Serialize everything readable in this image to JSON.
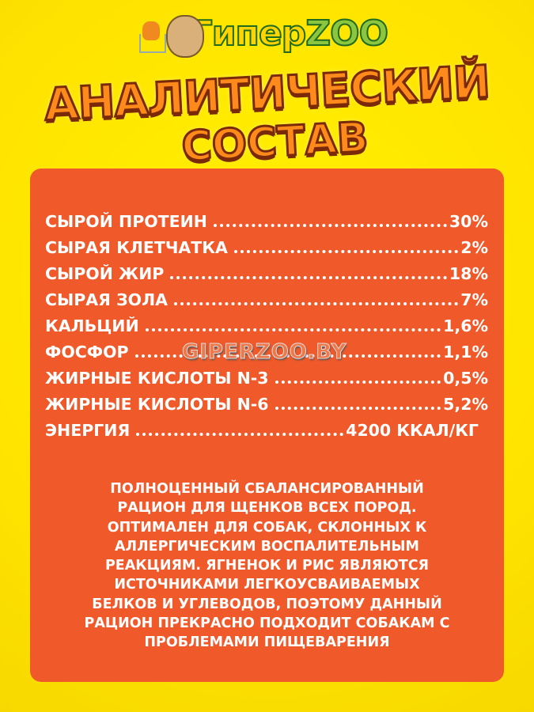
{
  "logo": {
    "text_part1": "Гипер",
    "text_part2": "ZOO"
  },
  "title": {
    "line1": "АНАЛИТИЧЕСКИЙ",
    "line2": "СОСТАВ"
  },
  "composition": [
    {
      "name": "СЫРОЙ ПРОТЕИН",
      "value": "30%"
    },
    {
      "name": "СЫРАЯ КЛЕТЧАТКА",
      "value": "2%"
    },
    {
      "name": "СЫРОЙ ЖИР",
      "value": "18%"
    },
    {
      "name": "СЫРАЯ ЗОЛА",
      "value": "7%"
    },
    {
      "name": "КАЛЬЦИЙ",
      "value": "1,6%"
    },
    {
      "name": "ФОСФОР",
      "value": "1,1%"
    },
    {
      "name": "ЖИРНЫЕ КИСЛОТЫ N-3",
      "value": "0,5%"
    },
    {
      "name": "ЖИРНЫЕ КИСЛОТЫ N-6",
      "value": "5,2%"
    },
    {
      "name": "ЭНЕРГИЯ",
      "value": "4200 ККАЛ/КГ"
    }
  ],
  "watermark": "GIPERZOO.BY",
  "description": [
    "ПОЛНОЦЕННЫЙ СБАЛАНСИРОВАННЫЙ",
    "РАЦИОН ДЛЯ ЩЕНКОВ ВСЕХ ПОРОД.",
    "ОПТИМАЛЕН ДЛЯ СОБАК, СКЛОННЫХ К",
    "АЛЛЕРГИЧЕСКИМ ВОСПАЛИТЕЛЬНЫМ",
    "РЕАКЦИЯМ. ЯГНЕНОК И РИС ЯВЛЯЮТСЯ",
    "ИСТОЧНИКАМИ ЛЕГКОУСВАИВАЕМЫХ",
    "БЕЛКОВ И УГЛЕВОДОВ, ПОЭТОМУ ДАННЫЙ",
    "РАЦИОН ПРЕКРАСНО ПОДХОДИТ СОБАКАМ С",
    "ПРОБЛЕМАМИ ПИЩЕВАРЕНИЯ"
  ],
  "colors": {
    "background": "#ffe400",
    "panel": "#f0592a",
    "title": "#ff8a1c"
  }
}
